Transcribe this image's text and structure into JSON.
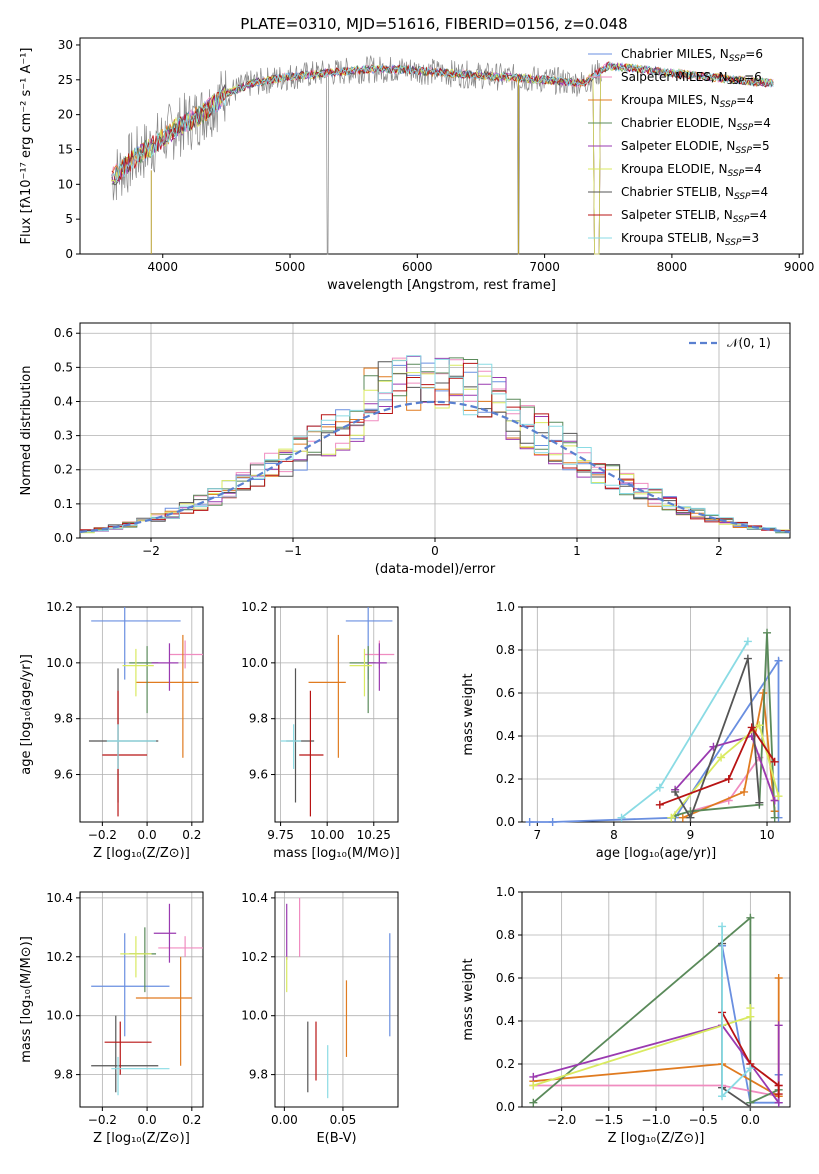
{
  "colors": [
    "#6a8fe0",
    "#f08cc0",
    "#e07b20",
    "#5a8a5a",
    "#9a3ab0",
    "#d9ea60",
    "#555555",
    "#b81414",
    "#8adbe4"
  ],
  "chart_data": [
    {
      "type": "line",
      "title": "PLATE=0310, MJD=51616, FIBERID=0156, z=0.048",
      "xlabel": "wavelength [Angstrom, rest frame]",
      "ylabel_tex": "Flux [fλ10⁻¹⁷ erg cm⁻² s⁻¹ A⁻¹]",
      "xlim": [
        3350,
        9030
      ],
      "ylim": [
        0,
        31
      ],
      "xticks": [
        "4000",
        "5000",
        "6000",
        "7000",
        "8000",
        "9000"
      ],
      "yticks": [
        "0",
        "5",
        "10",
        "15",
        "20",
        "25",
        "30"
      ],
      "legend": [
        {
          "name": "Chabrier MILES, N",
          "sub": "SSP",
          "val": "=6"
        },
        {
          "name": "Salpeter MILES, N",
          "sub": "SSP",
          "val": "=6"
        },
        {
          "name": "Kroupa MILES, N",
          "sub": "SSP",
          "val": "=4"
        },
        {
          "name": "Chabrier ELODIE, N",
          "sub": "SSP",
          "val": "=4"
        },
        {
          "name": "Salpeter ELODIE, N",
          "sub": "SSP",
          "val": "=5"
        },
        {
          "name": "Kroupa ELODIE, N",
          "sub": "SSP",
          "val": "=4"
        },
        {
          "name": "Chabrier STELIB, N",
          "sub": "SSP",
          "val": "=4"
        },
        {
          "name": "Salpeter STELIB, N",
          "sub": "SSP",
          "val": "=4"
        },
        {
          "name": "Kroupa STELIB, N",
          "sub": "SSP",
          "val": "=3"
        }
      ],
      "continuum": {
        "wavelength": [
          3600,
          3800,
          3950,
          4100,
          4300,
          4500,
          4700,
          5000,
          5300,
          5600,
          5900,
          6200,
          6600,
          7000,
          7300,
          7500,
          8000,
          8500,
          8800
        ],
        "flux": [
          11,
          14,
          16,
          18,
          20,
          23,
          24.5,
          25.5,
          26,
          26.5,
          26.5,
          26,
          25.5,
          25,
          24.5,
          27,
          26,
          25,
          24.5
        ]
      }
    },
    {
      "type": "histogram",
      "xlabel": "(data-model)/error",
      "ylabel": "Normed distribution",
      "xlim": [
        -2.5,
        2.5
      ],
      "ylim": [
        0,
        0.63
      ],
      "xticks": [
        "−2",
        "−1",
        "0",
        "1",
        "2"
      ],
      "yticks": [
        "0.0",
        "0.1",
        "0.2",
        "0.3",
        "0.4",
        "0.5",
        "0.6"
      ],
      "legend": "𝒩(0, 1)",
      "bin_width": 0.1,
      "reference_curve": "N(0,1) pdf"
    },
    {
      "type": "scatter",
      "xlabel": "Z [log₁₀(Z/Z⊙)]",
      "ylabel": "age  [log₁₀(age/yr)]",
      "xlim": [
        -0.3,
        0.25
      ],
      "ylim": [
        9.43,
        10.2
      ],
      "xticks": [
        "−0.2",
        "0.0",
        "0.2"
      ],
      "yticks": [
        "9.6",
        "9.8",
        "10.0",
        "10.2"
      ],
      "points": [
        {
          "x": -0.1,
          "y": 10.15,
          "xe": [
            -0.25,
            0.15
          ],
          "ye": [
            9.94,
            10.32
          ],
          "c": 0
        },
        {
          "x": 0.17,
          "y": 10.03,
          "xe": [
            0.1,
            0.25
          ],
          "ye": [
            9.98,
            10.08
          ],
          "c": 1
        },
        {
          "x": 0.16,
          "y": 9.93,
          "xe": [
            -0.05,
            0.23
          ],
          "ye": [
            9.66,
            10.1
          ],
          "c": 2
        },
        {
          "x": 0.0,
          "y": 10.0,
          "xe": [
            -0.08,
            0.05
          ],
          "ye": [
            9.82,
            10.06
          ],
          "c": 3
        },
        {
          "x": 0.1,
          "y": 10.0,
          "xe": [
            0.02,
            0.14
          ],
          "ye": [
            9.9,
            10.07
          ],
          "c": 4
        },
        {
          "x": -0.05,
          "y": 9.99,
          "xe": [
            -0.11,
            0.03
          ],
          "ye": [
            9.88,
            10.05
          ],
          "c": 5
        },
        {
          "x": -0.13,
          "y": 9.72,
          "xe": [
            -0.26,
            0.05
          ],
          "ye": [
            9.5,
            9.98
          ],
          "c": 6
        },
        {
          "x": -0.13,
          "y": 9.67,
          "xe": [
            -0.2,
            0.0
          ],
          "ye": [
            9.45,
            9.9
          ],
          "c": 7
        },
        {
          "x": -0.13,
          "y": 9.72,
          "xe": [
            -0.18,
            0.04
          ],
          "ye": [
            9.62,
            9.78
          ],
          "c": 8
        }
      ]
    },
    {
      "type": "scatter",
      "xlabel": "mass [log₁₀(M/M⊙)]",
      "xlim": [
        9.72,
        10.38
      ],
      "ylim": [
        9.43,
        10.2
      ],
      "xticks": [
        "9.75",
        "10.00",
        "10.25"
      ],
      "yticks": [
        "9.6",
        "9.8",
        "10.0",
        "10.2"
      ],
      "points": [
        {
          "x": 10.22,
          "y": 10.15,
          "xe": [
            10.1,
            10.35
          ],
          "ye": [
            9.94,
            10.32
          ],
          "c": 0
        },
        {
          "x": 10.28,
          "y": 10.03,
          "xe": [
            10.2,
            10.36
          ],
          "ye": [
            9.98,
            10.08
          ],
          "c": 1
        },
        {
          "x": 10.06,
          "y": 9.93,
          "xe": [
            9.9,
            10.1
          ],
          "ye": [
            9.66,
            10.1
          ],
          "c": 2
        },
        {
          "x": 10.22,
          "y": 10.0,
          "xe": [
            10.12,
            10.26
          ],
          "ye": [
            9.82,
            10.06
          ],
          "c": 3
        },
        {
          "x": 10.28,
          "y": 10.0,
          "xe": [
            10.22,
            10.32
          ],
          "ye": [
            9.9,
            10.07
          ],
          "c": 4
        },
        {
          "x": 10.2,
          "y": 9.99,
          "xe": [
            10.12,
            10.24
          ],
          "ye": [
            9.88,
            10.05
          ],
          "c": 5
        },
        {
          "x": 9.83,
          "y": 9.72,
          "xe": [
            9.78,
            9.93
          ],
          "ye": [
            9.5,
            9.98
          ],
          "c": 6
        },
        {
          "x": 9.91,
          "y": 9.67,
          "xe": [
            9.85,
            9.98
          ],
          "ye": [
            9.45,
            9.9
          ],
          "c": 7
        },
        {
          "x": 9.82,
          "y": 9.72,
          "xe": [
            9.75,
            9.86
          ],
          "ye": [
            9.62,
            9.78
          ],
          "c": 8
        }
      ]
    },
    {
      "type": "line",
      "xlabel": "age  [log₁₀(age/yr)]",
      "ylabel": "mass weight",
      "xlim": [
        6.8,
        10.3
      ],
      "ylim": [
        0,
        1.0
      ],
      "xticks": [
        "7",
        "8",
        "9",
        "10"
      ],
      "yticks": [
        "0.0",
        "0.2",
        "0.4",
        "0.6",
        "0.8",
        "1.0"
      ],
      "series": [
        {
          "c": 0,
          "x": [
            6.9,
            7.2,
            8.8,
            10.15,
            10.15
          ],
          "y": [
            0.0,
            0.0,
            0.02,
            0.75,
            0.02
          ]
        },
        {
          "c": 1,
          "x": [
            9.0,
            9.5,
            9.9,
            10.1
          ],
          "y": [
            0.05,
            0.1,
            0.3,
            0.1
          ]
        },
        {
          "c": 2,
          "x": [
            8.9,
            9.7,
            9.95,
            10.1
          ],
          "y": [
            0.02,
            0.14,
            0.6,
            0.05
          ]
        },
        {
          "c": 3,
          "x": [
            8.8,
            9.0,
            9.9,
            10.0,
            10.1
          ],
          "y": [
            0.03,
            0.05,
            0.08,
            0.88,
            0.02
          ]
        },
        {
          "c": 4,
          "x": [
            8.8,
            9.3,
            9.8,
            10.1
          ],
          "y": [
            0.15,
            0.35,
            0.4,
            0.1
          ]
        },
        {
          "c": 5,
          "x": [
            8.75,
            9.4,
            9.9,
            10.15
          ],
          "y": [
            0.02,
            0.3,
            0.45,
            0.12
          ]
        },
        {
          "c": 6,
          "x": [
            8.8,
            9.0,
            9.75,
            9.9
          ],
          "y": [
            0.14,
            0.02,
            0.76,
            0.09
          ]
        },
        {
          "c": 7,
          "x": [
            8.6,
            9.5,
            9.8,
            10.1
          ],
          "y": [
            0.08,
            0.2,
            0.44,
            0.28
          ]
        },
        {
          "c": 8,
          "x": [
            8.1,
            8.6,
            9.75
          ],
          "y": [
            0.02,
            0.16,
            0.84
          ]
        }
      ]
    },
    {
      "type": "scatter",
      "xlabel": "Z [log₁₀(Z/Z⊙)]",
      "ylabel": "mass [log₁₀(M/M⊙)]",
      "xlim": [
        -0.3,
        0.25
      ],
      "ylim": [
        9.69,
        10.42
      ],
      "xticks": [
        "−0.2",
        "0.0",
        "0.2"
      ],
      "yticks": [
        "9.8",
        "10.0",
        "10.2",
        "10.4"
      ],
      "points": [
        {
          "x": -0.1,
          "y": 10.1,
          "xe": [
            -0.25,
            0.1
          ],
          "ye": [
            9.93,
            10.28
          ],
          "c": 0
        },
        {
          "x": 0.17,
          "y": 10.23,
          "xe": [
            0.05,
            0.25
          ],
          "ye": [
            10.2,
            10.27
          ],
          "c": 1
        },
        {
          "x": 0.15,
          "y": 10.06,
          "xe": [
            -0.05,
            0.2
          ],
          "ye": [
            9.83,
            10.2
          ],
          "c": 2
        },
        {
          "x": -0.01,
          "y": 10.21,
          "xe": [
            -0.08,
            0.04
          ],
          "ye": [
            10.08,
            10.3
          ],
          "c": 3
        },
        {
          "x": 0.1,
          "y": 10.28,
          "xe": [
            0.03,
            0.13
          ],
          "ye": [
            10.18,
            10.38
          ],
          "c": 4
        },
        {
          "x": -0.05,
          "y": 10.21,
          "xe": [
            -0.12,
            0.02
          ],
          "ye": [
            10.13,
            10.27
          ],
          "c": 5
        },
        {
          "x": -0.14,
          "y": 9.83,
          "xe": [
            -0.25,
            0.05
          ],
          "ye": [
            9.74,
            10.0
          ],
          "c": 6
        },
        {
          "x": -0.12,
          "y": 9.91,
          "xe": [
            -0.19,
            0.02
          ],
          "ye": [
            9.8,
            9.98
          ],
          "c": 7
        },
        {
          "x": -0.13,
          "y": 9.82,
          "xe": [
            -0.16,
            0.1
          ],
          "ye": [
            9.73,
            9.86
          ],
          "c": 8
        }
      ]
    },
    {
      "type": "scatter",
      "xlabel": "E(B-V)",
      "xlim": [
        -0.008,
        0.097
      ],
      "ylim": [
        9.69,
        10.42
      ],
      "xticks": [
        "0.00",
        "0.05"
      ],
      "yticks": [
        "9.8",
        "10.0",
        "10.2",
        "10.4"
      ],
      "points": [
        {
          "x": 0.09,
          "y": 10.1,
          "ye": [
            9.93,
            10.28
          ],
          "c": 0
        },
        {
          "x": 0.013,
          "y": 10.3,
          "ye": [
            10.2,
            10.4
          ],
          "c": 1
        },
        {
          "x": 0.053,
          "y": 10.0,
          "ye": [
            9.86,
            10.12
          ],
          "c": 2
        },
        {
          "x": 0.002,
          "y": 10.29,
          "ye": [
            10.19,
            10.38
          ],
          "c": 4
        },
        {
          "x": 0.002,
          "y": 10.15,
          "ye": [
            10.08,
            10.2
          ],
          "c": 5
        },
        {
          "x": 0.02,
          "y": 9.87,
          "ye": [
            9.74,
            9.98
          ],
          "c": 6
        },
        {
          "x": 0.027,
          "y": 9.89,
          "ye": [
            9.78,
            9.98
          ],
          "c": 7
        },
        {
          "x": 0.037,
          "y": 9.8,
          "ye": [
            9.72,
            9.9
          ],
          "c": 8
        }
      ]
    },
    {
      "type": "line",
      "xlabel": "Z [log₁₀(Z/Z⊙)]",
      "ylabel": "mass weight",
      "xlim": [
        -2.42,
        0.42
      ],
      "ylim": [
        0,
        1.0
      ],
      "xticks": [
        "−2.0",
        "−1.5",
        "−1.0",
        "−0.5",
        "0.0"
      ],
      "yticks": [
        "0.0",
        "0.2",
        "0.4",
        "0.6",
        "0.8",
        "1.0"
      ],
      "series": [
        {
          "c": 0,
          "x": [
            -0.3,
            0.0,
            0.3,
            0.3
          ],
          "y": [
            0.75,
            0.02,
            0.02,
            0.15
          ]
        },
        {
          "c": 1,
          "x": [
            -2.3,
            -0.3,
            0.3,
            0.3
          ],
          "y": [
            0.1,
            0.1,
            0.05,
            0.1
          ]
        },
        {
          "c": 2,
          "x": [
            -2.3,
            -0.3,
            0.3,
            0.3
          ],
          "y": [
            0.12,
            0.2,
            0.05,
            0.6
          ]
        },
        {
          "c": 3,
          "x": [
            -2.3,
            0.0,
            0.0,
            0.3
          ],
          "y": [
            0.02,
            0.88,
            0.02,
            0.08
          ]
        },
        {
          "c": 4,
          "x": [
            -2.3,
            -0.3,
            0.3,
            0.3
          ],
          "y": [
            0.14,
            0.38,
            0.02,
            0.38
          ]
        },
        {
          "c": 5,
          "x": [
            -2.3,
            0.0,
            0.0
          ],
          "y": [
            0.1,
            0.42,
            0.46
          ]
        },
        {
          "c": 6,
          "x": [
            -0.3,
            -0.3,
            0.0
          ],
          "y": [
            0.76,
            0.09,
            0.0
          ]
        },
        {
          "c": 7,
          "x": [
            -0.3,
            0.0,
            0.3,
            0.3
          ],
          "y": [
            0.44,
            0.2,
            0.1,
            0.06
          ]
        },
        {
          "c": 8,
          "x": [
            -0.3,
            -0.3,
            0.0
          ],
          "y": [
            0.84,
            0.05,
            0.18
          ]
        }
      ]
    }
  ]
}
